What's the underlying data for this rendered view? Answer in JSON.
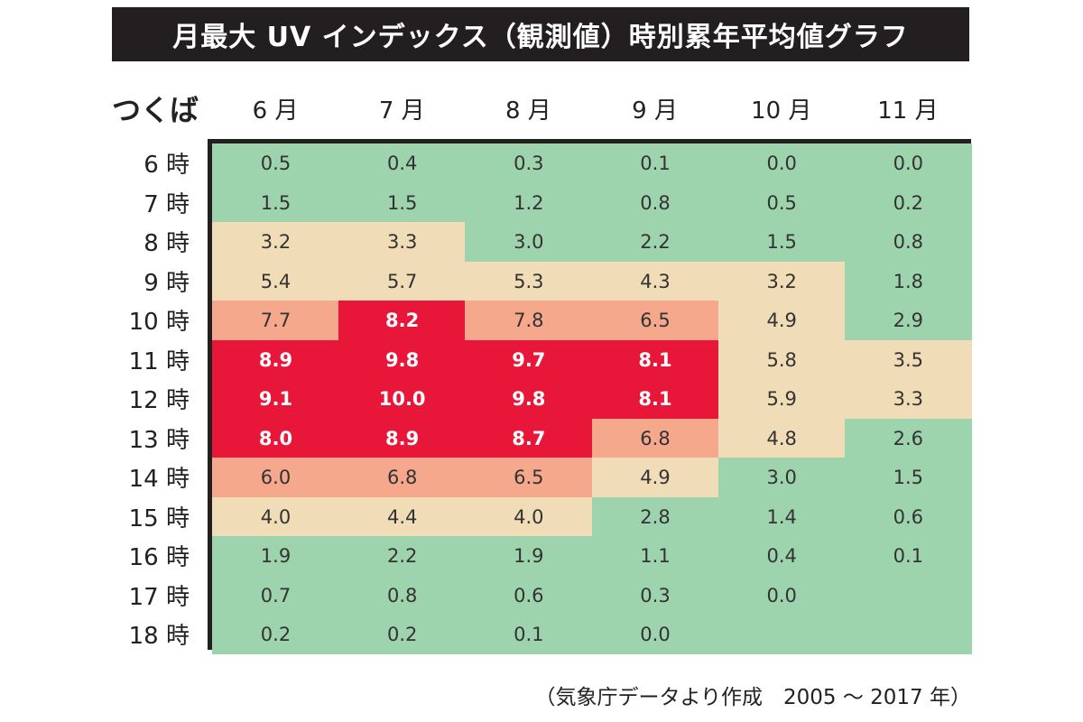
{
  "title": "月最大 UV インデックス（観測値）時別累年平均値グラフ",
  "location": "つくば",
  "source_note": "（気象庁データより作成　2005 ～ 2017 年）",
  "colors": {
    "low": "#9dd4ae",
    "moderate": "#f0dcb7",
    "high": "#f5a88b",
    "very_high": "#e8173a",
    "title_bar": "#231f20"
  },
  "chart_data": {
    "type": "heatmap",
    "title": "月最大 UV インデックス（観測値）時別累年平均値グラフ",
    "row_header": "つくば",
    "columns": [
      "6 月",
      "7 月",
      "8 月",
      "9 月",
      "10 月",
      "11 月"
    ],
    "rows": [
      "6 時",
      "7 時",
      "8 時",
      "9 時",
      "10 時",
      "11 時",
      "12 時",
      "13 時",
      "14 時",
      "15 時",
      "16 時",
      "17 時",
      "18 時"
    ],
    "values": [
      [
        "0.5",
        "0.4",
        "0.3",
        "0.1",
        "0.0",
        "0.0"
      ],
      [
        "1.5",
        "1.5",
        "1.2",
        "0.8",
        "0.5",
        "0.2"
      ],
      [
        "3.2",
        "3.3",
        "3.0",
        "2.2",
        "1.5",
        "0.8"
      ],
      [
        "5.4",
        "5.7",
        "5.3",
        "4.3",
        "3.2",
        "1.8"
      ],
      [
        "7.7",
        "8.2",
        "7.8",
        "6.5",
        "4.9",
        "2.9"
      ],
      [
        "8.9",
        "9.8",
        "9.7",
        "8.1",
        "5.8",
        "3.5"
      ],
      [
        "9.1",
        "10.0",
        "9.8",
        "8.1",
        "5.9",
        "3.3"
      ],
      [
        "8.0",
        "8.9",
        "8.7",
        "6.8",
        "4.8",
        "2.6"
      ],
      [
        "6.0",
        "6.8",
        "6.5",
        "4.9",
        "3.0",
        "1.5"
      ],
      [
        "4.0",
        "4.4",
        "4.0",
        "2.8",
        "1.4",
        "0.6"
      ],
      [
        "1.9",
        "2.2",
        "1.9",
        "1.1",
        "0.4",
        "0.1"
      ],
      [
        "0.7",
        "0.8",
        "0.6",
        "0.3",
        "0.0",
        ""
      ],
      [
        "0.2",
        "0.2",
        "0.1",
        "0.0",
        "",
        ""
      ]
    ],
    "categories": [
      [
        "low",
        "low",
        "low",
        "low",
        "low",
        "low"
      ],
      [
        "low",
        "low",
        "low",
        "low",
        "low",
        "low"
      ],
      [
        "moderate",
        "moderate",
        "low",
        "low",
        "low",
        "low"
      ],
      [
        "moderate",
        "moderate",
        "moderate",
        "moderate",
        "moderate",
        "low"
      ],
      [
        "high",
        "very_high",
        "high",
        "high",
        "moderate",
        "low"
      ],
      [
        "very_high",
        "very_high",
        "very_high",
        "very_high",
        "moderate",
        "moderate"
      ],
      [
        "very_high",
        "very_high",
        "very_high",
        "very_high",
        "moderate",
        "moderate"
      ],
      [
        "very_high",
        "very_high",
        "very_high",
        "high",
        "moderate",
        "low"
      ],
      [
        "high",
        "high",
        "high",
        "moderate",
        "low",
        "low"
      ],
      [
        "moderate",
        "moderate",
        "moderate",
        "low",
        "low",
        "low"
      ],
      [
        "low",
        "low",
        "low",
        "low",
        "low",
        "low"
      ],
      [
        "low",
        "low",
        "low",
        "low",
        "low",
        "low"
      ],
      [
        "low",
        "low",
        "low",
        "low",
        "low",
        "low"
      ]
    ]
  }
}
